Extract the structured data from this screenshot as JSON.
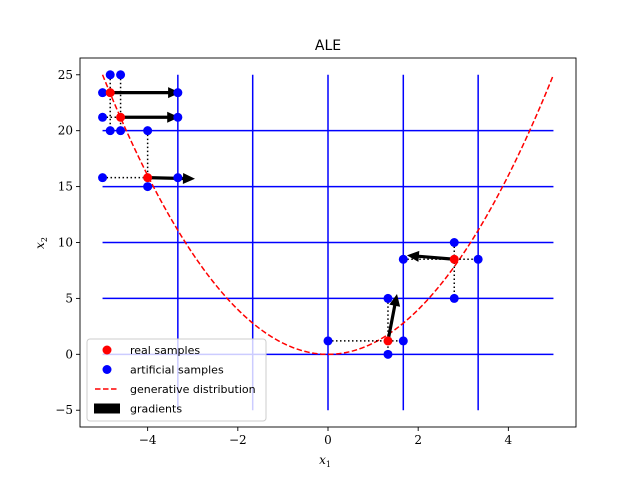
{
  "chart_data": {
    "type": "scatter",
    "title": "ALE",
    "xlabel": "x",
    "xlabel_sub": "1",
    "ylabel": "x",
    "ylabel_sub": "2",
    "xlim": [
      -5.5,
      5.5
    ],
    "ylim": [
      -6.5,
      26.5
    ],
    "xticks": [
      -4,
      -2,
      0,
      2,
      4
    ],
    "yticks": [
      -5,
      0,
      5,
      10,
      15,
      20,
      25
    ],
    "legend_position": "lower-left",
    "colors": {
      "real": "#ff0000",
      "artificial": "#0000ff",
      "curve": "#ff0000",
      "grid": "#0000ff",
      "gradient": "#000000",
      "connector": "#000000"
    },
    "curve": {
      "name": "generative distribution",
      "function": "x^2",
      "x_range": [
        -5,
        5
      ]
    },
    "grid": {
      "vertical_x": [
        -3.33,
        -1.67,
        0,
        1.67,
        3.33
      ],
      "vertical_y_range": [
        -5,
        25
      ],
      "horizontal_y": [
        0,
        5,
        10,
        15,
        20
      ],
      "horizontal_x_range": [
        -5,
        5
      ]
    },
    "real_samples": [
      {
        "x": -4.83,
        "y": 23.4
      },
      {
        "x": -4.6,
        "y": 21.2
      },
      {
        "x": -4.0,
        "y": 15.8
      },
      {
        "x": 1.33,
        "y": 1.2
      },
      {
        "x": 2.8,
        "y": 8.5
      }
    ],
    "artificial_samples": [
      {
        "x": -4.83,
        "y": 25.0
      },
      {
        "x": -4.6,
        "y": 25.0
      },
      {
        "x": -5.0,
        "y": 23.4
      },
      {
        "x": -3.33,
        "y": 23.4
      },
      {
        "x": -5.0,
        "y": 21.2
      },
      {
        "x": -3.33,
        "y": 21.2
      },
      {
        "x": -4.83,
        "y": 20.0
      },
      {
        "x": -4.6,
        "y": 20.0
      },
      {
        "x": -4.0,
        "y": 20.0
      },
      {
        "x": -5.0,
        "y": 15.8
      },
      {
        "x": -3.33,
        "y": 15.8
      },
      {
        "x": -4.0,
        "y": 15.0
      },
      {
        "x": 0.0,
        "y": 1.2
      },
      {
        "x": 1.67,
        "y": 1.2
      },
      {
        "x": 1.33,
        "y": 5.0
      },
      {
        "x": 1.33,
        "y": 0.0
      },
      {
        "x": 1.67,
        "y": 8.5
      },
      {
        "x": 3.33,
        "y": 8.5
      },
      {
        "x": 2.8,
        "y": 10.0
      },
      {
        "x": 2.8,
        "y": 5.0
      }
    ],
    "connectors": [
      {
        "x1": -4.83,
        "y1": 25.0,
        "x2": -4.83,
        "y2": 20.0
      },
      {
        "x1": -5.0,
        "y1": 23.4,
        "x2": -3.33,
        "y2": 23.4
      },
      {
        "x1": -4.6,
        "y1": 25.0,
        "x2": -4.6,
        "y2": 20.0
      },
      {
        "x1": -5.0,
        "y1": 21.2,
        "x2": -3.33,
        "y2": 21.2
      },
      {
        "x1": -4.0,
        "y1": 20.0,
        "x2": -4.0,
        "y2": 15.0
      },
      {
        "x1": -5.0,
        "y1": 15.8,
        "x2": -3.33,
        "y2": 15.8
      },
      {
        "x1": 0.0,
        "y1": 1.2,
        "x2": 1.67,
        "y2": 1.2
      },
      {
        "x1": 1.33,
        "y1": 5.0,
        "x2": 1.33,
        "y2": 0.0
      },
      {
        "x1": 1.67,
        "y1": 8.5,
        "x2": 3.33,
        "y2": 8.5
      },
      {
        "x1": 2.8,
        "y1": 10.0,
        "x2": 2.8,
        "y2": 5.0
      }
    ],
    "gradients": [
      {
        "x": -4.83,
        "y": 23.4,
        "dx": 1.55,
        "dy": 0.0
      },
      {
        "x": -4.6,
        "y": 21.2,
        "dx": 1.3,
        "dy": 0.0
      },
      {
        "x": -4.0,
        "y": 15.8,
        "dx": 1.05,
        "dy": -0.1
      },
      {
        "x": 1.33,
        "y": 1.2,
        "dx": 0.2,
        "dy": 4.2
      },
      {
        "x": 2.8,
        "y": 8.5,
        "dx": -1.05,
        "dy": 0.35
      }
    ],
    "legend": [
      {
        "label": "real samples",
        "kind": "real-marker"
      },
      {
        "label": "artificial samples",
        "kind": "artificial-marker"
      },
      {
        "label": "generative distribution",
        "kind": "dashed-line"
      },
      {
        "label": "gradients",
        "kind": "arrow-patch"
      }
    ]
  }
}
